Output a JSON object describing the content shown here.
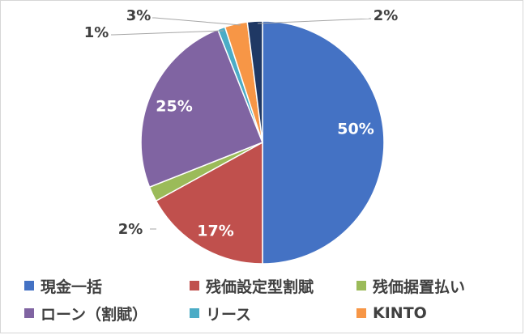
{
  "chart_data": {
    "type": "pie",
    "categories": [
      "現金一括",
      "残価設定型割賦",
      "残価据置払い",
      "ローン（割賦）",
      "リース",
      "KINTO",
      ""
    ],
    "values": [
      50,
      17,
      2,
      25,
      1,
      3,
      2
    ],
    "data_labels": [
      "50%",
      "17%",
      "2%",
      "25%",
      "1%",
      "3%",
      "2%"
    ],
    "colors": [
      "#4472C4",
      "#C0504D",
      "#9BBB59",
      "#8064A2",
      "#4BACC6",
      "#F79646",
      "#1F3864"
    ],
    "legend_position": "bottom",
    "legend": [
      "現金一括",
      "残価設定型割賦",
      "残価据置払い",
      "ローン（割賦）",
      "リース",
      "KINTO"
    ]
  }
}
